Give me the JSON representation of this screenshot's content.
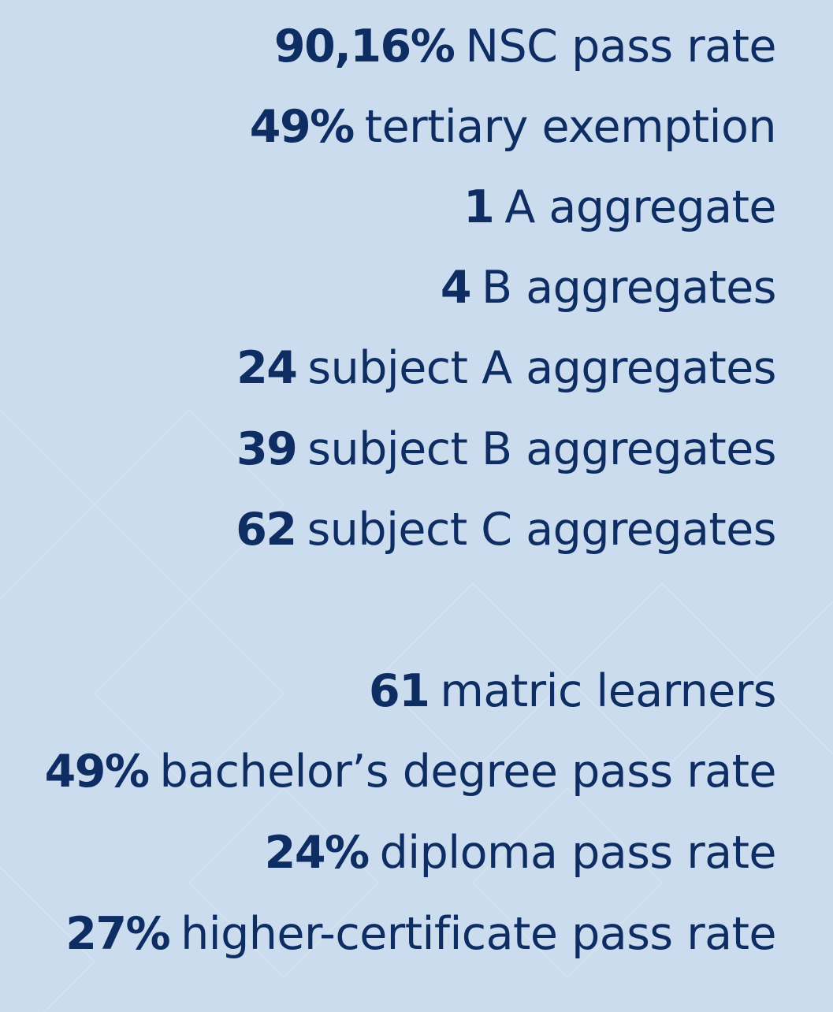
{
  "colors": {
    "background": "#cbdcee",
    "text": "#0d2d63",
    "pattern": "#d3e2f1"
  },
  "group1": [
    {
      "value": "90,16%",
      "label": "NSC pass rate"
    },
    {
      "value": "49%",
      "label": "tertiary exemption"
    },
    {
      "value": "1",
      "label": "A aggregate"
    },
    {
      "value": "4",
      "label": "B aggregates"
    },
    {
      "value": "24",
      "label": "subject A aggregates"
    },
    {
      "value": "39",
      "label": "subject B aggregates"
    },
    {
      "value": "62",
      "label": "subject C aggregates"
    }
  ],
  "group2": [
    {
      "value": "61",
      "label": "matric learners"
    },
    {
      "value": "49%",
      "label": "bachelor’s degree pass rate"
    },
    {
      "value": "24%",
      "label": "diploma pass rate"
    },
    {
      "value": "27%",
      "label": "higher-certificate pass rate"
    }
  ]
}
